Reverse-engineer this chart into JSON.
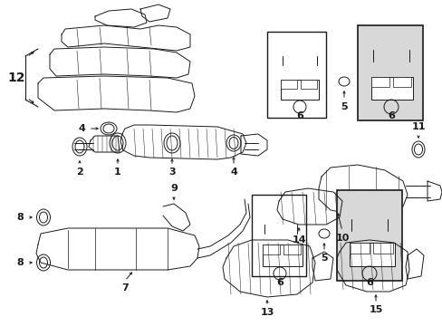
{
  "title": "",
  "bg_color": "#ffffff",
  "line_color": "#1a1a1a",
  "fig_width": 4.89,
  "fig_height": 3.6,
  "dpi": 100,
  "lw": 0.7
}
